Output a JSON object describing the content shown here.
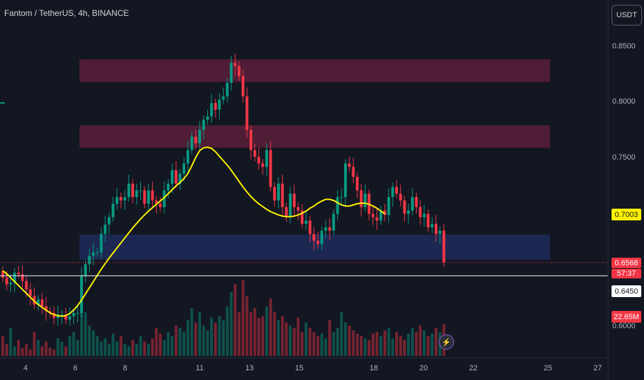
{
  "header": {
    "symbol_title": "Fantom / TetherUS, 4h, BINANCE",
    "currency_button": "USDT"
  },
  "price_axis": {
    "ticks": [
      "0.8500",
      "0.8000",
      "0.7500",
      "0.6000"
    ],
    "ma_label": "0.7003",
    "last_price_label": "0.6568",
    "countdown_label": "57:37",
    "line_label": "0.6450",
    "volume_label": "22.65M"
  },
  "time_axis": {
    "ticks": [
      "4",
      "6",
      "8",
      "11",
      "13",
      "15",
      "18",
      "20",
      "22",
      "25",
      "27"
    ]
  },
  "colors": {
    "background": "#131722",
    "up": "#089981",
    "down": "#f23645",
    "ma": "#fff200",
    "supply_zone": "#5b1e38",
    "demand_zone": "#1e2b5b"
  },
  "chart_data": {
    "type": "candlestick",
    "symbol": "Fantom / TetherUS",
    "interval": "4h",
    "exchange": "BINANCE",
    "x_dates": [
      "4",
      "6",
      "8",
      "11",
      "13",
      "15",
      "18",
      "20",
      "22",
      "25",
      "27"
    ],
    "price_ticks": [
      0.85,
      0.8,
      0.75,
      0.6
    ],
    "ylim": [
      0.6,
      0.85
    ],
    "last_price": 0.6568,
    "horizontal_line": 0.645,
    "ma_value": 0.7003,
    "zones": [
      {
        "name": "supply-upper",
        "from": 0.8181,
        "to": 0.8383
      },
      {
        "name": "supply-lower",
        "from": 0.7594,
        "to": 0.7793
      },
      {
        "name": "demand",
        "from": 0.6593,
        "to": 0.6818
      }
    ],
    "close_series": [
      0.6433,
      0.6373,
      0.6388,
      0.6478,
      0.6463,
      0.6403,
      0.6328,
      0.6268,
      0.6193,
      0.6238,
      0.6178,
      0.6133,
      0.6118,
      0.6073,
      0.6103,
      0.6103,
      0.6058,
      0.6088,
      0.6118,
      0.6118,
      0.6448,
      0.6553,
      0.6628,
      0.6658,
      0.6658,
      0.6823,
      0.6908,
      0.6973,
      0.7093,
      0.7153,
      0.7123,
      0.7153,
      0.7273,
      0.7153,
      0.7213,
      0.7213,
      0.7093,
      0.7213,
      0.7123,
      0.7093,
      0.7063,
      0.7213,
      0.7273,
      0.7393,
      0.7273,
      0.7363,
      0.7453,
      0.7573,
      0.7693,
      0.7633,
      0.7753,
      0.7843,
      0.7873,
      0.7993,
      0.7933,
      0.8023,
      0.8053,
      0.8173,
      0.8353,
      0.8323,
      0.8233,
      0.8053,
      0.7753,
      0.7573,
      0.7513,
      0.7453,
      0.7423,
      0.7573,
      0.7243,
      0.7123,
      0.7273,
      0.7063,
      0.6973,
      0.7183,
      0.7063,
      0.7033,
      0.6913,
      0.6943,
      0.6823,
      0.6763,
      0.6733,
      0.6853,
      0.6883,
      0.6853,
      0.7003,
      0.7153,
      0.7153,
      0.7453,
      0.7423,
      0.7333,
      0.7213,
      0.7063,
      0.7183,
      0.7003,
      0.6973,
      0.6943,
      0.7033,
      0.6993,
      0.7153,
      0.7243,
      0.7183,
      0.7123,
      0.7003,
      0.7033,
      0.7153,
      0.7063,
      0.6973,
      0.7003,
      0.6883,
      0.6913,
      0.6823,
      0.6853,
      0.6568
    ],
    "ma_series": [
      0.6493,
      0.6468,
      0.6433,
      0.6398,
      0.6363,
      0.6328,
      0.6293,
      0.6258,
      0.6223,
      0.6193,
      0.6168,
      0.6143,
      0.6118,
      0.6103,
      0.6093,
      0.6088,
      0.6093,
      0.6113,
      0.6143,
      0.6183,
      0.6233,
      0.6288,
      0.6343,
      0.6398,
      0.6453,
      0.6508,
      0.6558,
      0.6608,
      0.6653,
      0.6698,
      0.6743,
      0.6788,
      0.6833,
      0.6878,
      0.6918,
      0.6958,
      0.6993,
      0.7028,
      0.7058,
      0.7088,
      0.7118,
      0.7148,
      0.7183,
      0.7218,
      0.7253,
      0.7283,
      0.7318,
      0.7363,
      0.7433,
      0.7508,
      0.7568,
      0.7593,
      0.7598,
      0.7588,
      0.7558,
      0.7518,
      0.7478,
      0.7438,
      0.7393,
      0.7343,
      0.7293,
      0.7243,
      0.7198,
      0.7158,
      0.7123,
      0.7093,
      0.7068,
      0.7043,
      0.7023,
      0.7008,
      0.6993,
      0.6983,
      0.6978,
      0.6978,
      0.6983,
      0.6993,
      0.7008,
      0.7028,
      0.7053,
      0.7073,
      0.7098,
      0.7118,
      0.7133,
      0.7133,
      0.7123,
      0.7103,
      0.7083,
      0.7073,
      0.7073,
      0.7083,
      0.7093,
      0.7098,
      0.7098,
      0.7088,
      0.7073,
      0.7053,
      0.7028,
      0.7003
    ],
    "volume_relative": [
      0.25,
      0.15,
      0.35,
      0.12,
      0.2,
      0.1,
      0.15,
      0.08,
      0.3,
      0.2,
      0.12,
      0.18,
      0.1,
      0.08,
      0.22,
      0.18,
      0.12,
      0.25,
      0.3,
      0.2,
      0.85,
      0.55,
      0.38,
      0.32,
      0.25,
      0.18,
      0.22,
      0.15,
      0.28,
      0.18,
      0.25,
      0.15,
      0.12,
      0.2,
      0.15,
      0.25,
      0.18,
      0.15,
      0.22,
      0.35,
      0.28,
      0.2,
      0.3,
      0.25,
      0.38,
      0.35,
      0.3,
      0.45,
      0.6,
      0.42,
      0.55,
      0.38,
      0.32,
      0.48,
      0.42,
      0.5,
      0.45,
      0.62,
      0.8,
      0.9,
      0.55,
      0.95,
      0.75,
      0.55,
      0.6,
      0.48,
      0.5,
      0.62,
      0.72,
      0.55,
      0.45,
      0.5,
      0.42,
      0.38,
      0.35,
      0.48,
      0.3,
      0.42,
      0.35,
      0.3,
      0.25,
      0.28,
      0.22,
      0.45,
      0.3,
      0.35,
      0.55,
      0.42,
      0.38,
      0.32,
      0.28,
      0.25,
      0.22,
      0.2,
      0.28,
      0.3,
      0.25,
      0.32,
      0.35,
      0.22,
      0.3,
      0.25,
      0.2,
      0.28,
      0.35,
      0.3,
      0.38,
      0.32,
      0.25,
      0.28,
      0.35,
      0.3,
      0.4
    ]
  }
}
